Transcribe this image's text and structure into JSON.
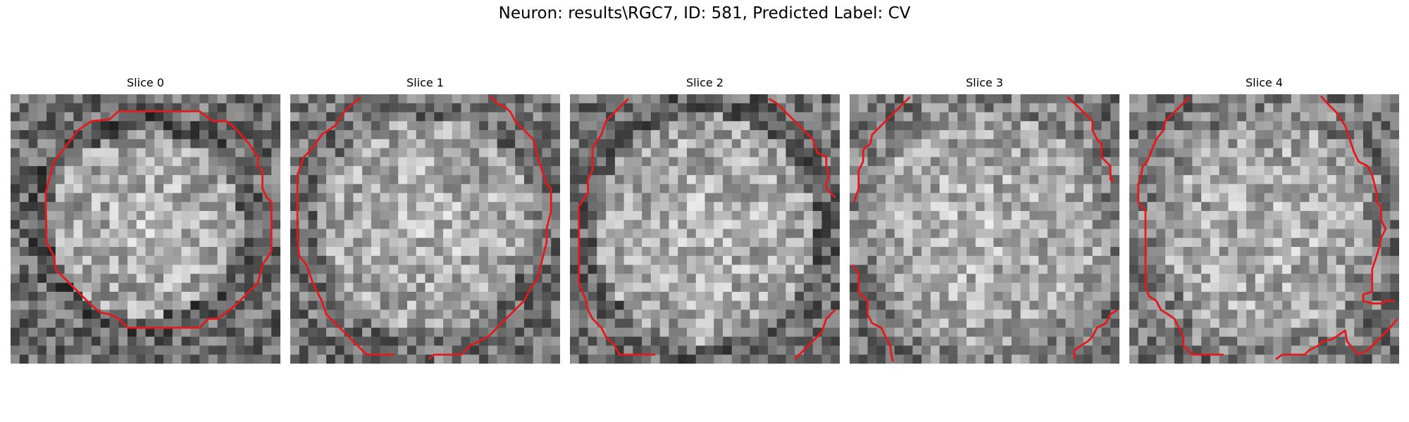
{
  "figure": {
    "suptitle": "Neuron: results\\RGC7, ID: 581, Predicted Label: CV"
  },
  "panels": [
    {
      "title": "Slice 0"
    },
    {
      "title": "Slice 1"
    },
    {
      "title": "Slice 2"
    },
    {
      "title": "Slice 3"
    },
    {
      "title": "Slice 4"
    }
  ],
  "colors": {
    "contour": "#e31a1c",
    "colormap": "grayscale"
  }
}
